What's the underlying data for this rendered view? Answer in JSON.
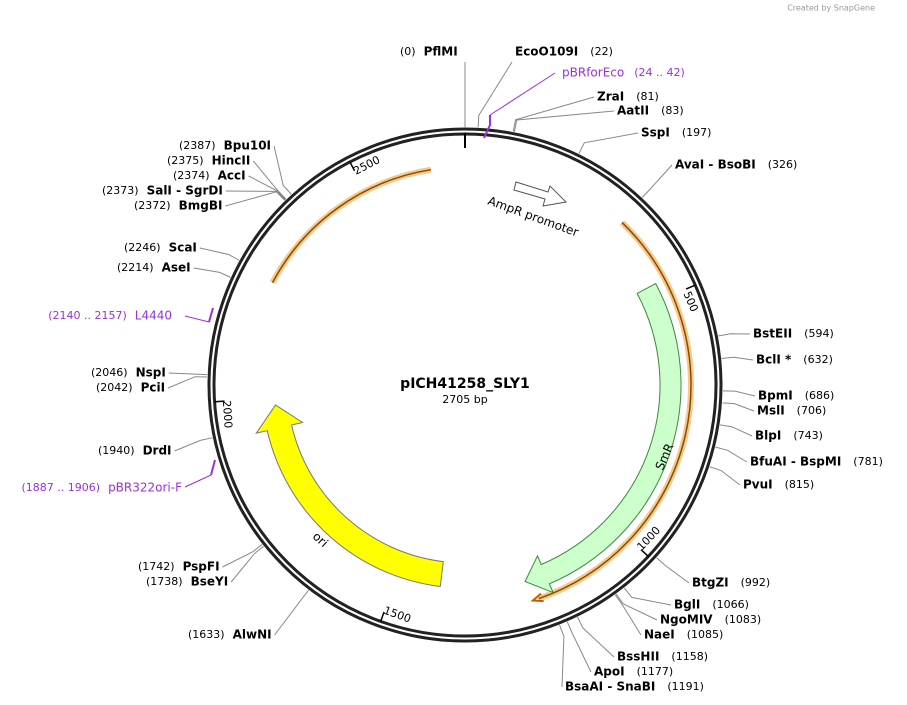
{
  "watermark": "Created by SnapGene",
  "map": {
    "name": "pICH41258_SLY1",
    "length": {
      "value": 2705,
      "label": "2705 bp"
    },
    "ticks": [
      500,
      1000,
      1500,
      2000,
      2500
    ],
    "sites": [
      {
        "name": "PflMI",
        "bp": 0,
        "label": "(0)"
      },
      {
        "name": "EcoO109I",
        "bp": 22,
        "label": "(22)"
      },
      {
        "name": "ZraI",
        "bp": 81,
        "label": "(81)"
      },
      {
        "name": "AatII",
        "bp": 83,
        "label": "(83)"
      },
      {
        "name": "SspI",
        "bp": 197,
        "label": "(197)"
      },
      {
        "name": "AvaI - BsoBI",
        "bp": 326,
        "label": "(326)"
      },
      {
        "name": "BstEII",
        "bp": 594,
        "label": "(594)"
      },
      {
        "name": "BclI *",
        "bp": 632,
        "label": "(632)"
      },
      {
        "name": "BpmI",
        "bp": 686,
        "label": "(686)"
      },
      {
        "name": "MslI",
        "bp": 706,
        "label": "(706)"
      },
      {
        "name": "BlpI",
        "bp": 743,
        "label": "(743)"
      },
      {
        "name": "BfuAI - BspMI",
        "bp": 781,
        "label": "(781)"
      },
      {
        "name": "PvuI",
        "bp": 815,
        "label": "(815)"
      },
      {
        "name": "BtgZI",
        "bp": 992,
        "label": "(992)"
      },
      {
        "name": "BglI",
        "bp": 1066,
        "label": "(1066)"
      },
      {
        "name": "NgoMIV",
        "bp": 1083,
        "label": "(1083)"
      },
      {
        "name": "NaeI",
        "bp": 1085,
        "label": "(1085)"
      },
      {
        "name": "BssHII",
        "bp": 1158,
        "label": "(1158)"
      },
      {
        "name": "ApoI",
        "bp": 1177,
        "label": "(1177)"
      },
      {
        "name": "BsaAI - SnaBI",
        "bp": 1191,
        "label": "(1191)"
      },
      {
        "name": "AlwNI",
        "bp": 1633,
        "label": "(1633)"
      },
      {
        "name": "BseYI",
        "bp": 1738,
        "label": "(1738)"
      },
      {
        "name": "PspFI",
        "bp": 1742,
        "label": "(1742)"
      },
      {
        "name": "DrdI",
        "bp": 1940,
        "label": "(1940)"
      },
      {
        "name": "PciI",
        "bp": 2042,
        "label": "(2042)"
      },
      {
        "name": "NspI",
        "bp": 2046,
        "label": "(2046)"
      },
      {
        "name": "AseI",
        "bp": 2214,
        "label": "(2214)"
      },
      {
        "name": "ScaI",
        "bp": 2246,
        "label": "(2246)"
      },
      {
        "name": "BmgBI",
        "bp": 2372,
        "label": "(2372)"
      },
      {
        "name": "SalI - SgrDI",
        "bp": 2373,
        "label": "(2373)"
      },
      {
        "name": "AccI",
        "bp": 2374,
        "label": "(2374)"
      },
      {
        "name": "HincII",
        "bp": 2375,
        "label": "(2375)"
      },
      {
        "name": "Bpu10I",
        "bp": 2387,
        "label": "(2387)"
      }
    ],
    "features": [
      {
        "name": "AmpR promoter"
      },
      {
        "name": "SmR"
      },
      {
        "name": "ori"
      }
    ],
    "primers": [
      {
        "name": "pBRforEco",
        "range": "(24 .. 42)"
      },
      {
        "name": "L4440",
        "range": "(2140 .. 2157)"
      },
      {
        "name": "pBR322ori-F",
        "range": "(1887 .. 1906)"
      }
    ]
  }
}
